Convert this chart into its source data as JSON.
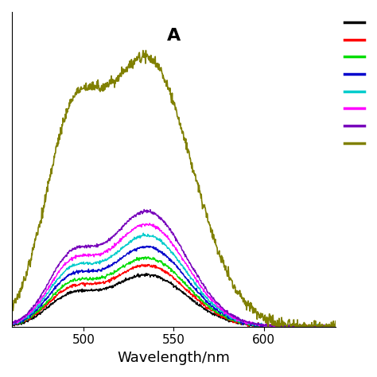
{
  "title": "A",
  "xlabel": "Wavelength/nm",
  "ylabel": "",
  "xlim": [
    460,
    640
  ],
  "ylim": [
    0,
    0.85
  ],
  "colors": [
    "#000000",
    "#ff0000",
    "#00dd00",
    "#0000cc",
    "#00cccc",
    "#ff00ff",
    "#7700bb",
    "#808000"
  ],
  "curve_amplitudes": [
    0.14,
    0.165,
    0.185,
    0.215,
    0.245,
    0.275,
    0.31,
    0.72
  ],
  "peak_wavelength": 535,
  "shoulder_wavelength": 492,
  "peak_sigma": 22,
  "shoulder_sigma": 13,
  "shoulder_ratio": 0.5,
  "olive_shoulder_ratio": 0.6,
  "olive_peak_sigma": 25,
  "noise_scale": 0.002,
  "background_color": "#ffffff",
  "tick_fontsize": 11,
  "label_fontsize": 13,
  "title_fontsize": 16,
  "fig_width": 4.74,
  "fig_height": 4.74,
  "dpi": 100
}
